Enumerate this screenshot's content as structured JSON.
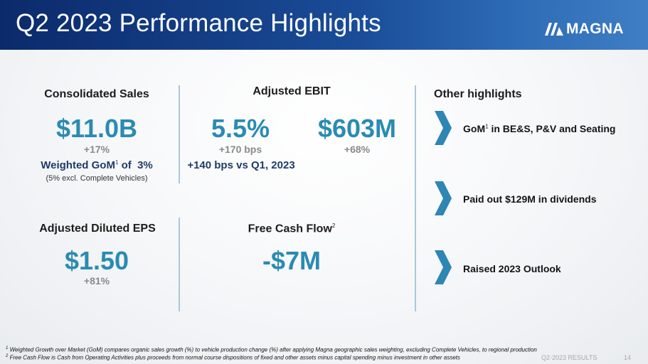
{
  "slide": {
    "title": "Q2 2023 Performance Highlights",
    "logo_text": "MAGNA",
    "footer_label": "Q2-2023 RESULTS",
    "page_number": "14"
  },
  "colors": {
    "header_blue": "#0b2a6b",
    "value_blue": "#2a8bb2",
    "dark_navy_text": "#1f3c67",
    "chevron_blue": "#2e86b4"
  },
  "consolidated_sales": {
    "heading": "Consolidated Sales",
    "value": "$11.0B",
    "change": "+17%",
    "gom_label": "Weighted GoM",
    "gom_sup": "1",
    "gom_value": "of  3%",
    "gom_note": "(5% excl. Complete Vehicles)"
  },
  "adjusted_ebit": {
    "heading": "Adjusted EBIT",
    "margin_value": "5.5%",
    "margin_change": "+170 bps",
    "amount_value": "$603M",
    "amount_change": "+68%",
    "vs_prior": "+140 bps vs Q1, 2023"
  },
  "adjusted_eps": {
    "heading": "Adjusted Diluted EPS",
    "value": "$1.50",
    "change": "+81%"
  },
  "free_cash_flow": {
    "heading": "Free Cash Flow",
    "heading_sup": "2",
    "value": "-$7M"
  },
  "other_highlights": {
    "heading": "Other highlights",
    "icon": "chevron-right-icon",
    "items": [
      {
        "label": "GoM",
        "sup": "1",
        "rest": " in BE&S, P&V and Seating"
      },
      {
        "label": "Paid out $129M in dividends"
      },
      {
        "label": "Raised 2023 Outlook"
      }
    ]
  },
  "footnotes": [
    {
      "num": "1",
      "text": " Weighted Growth over Market (GoM) compares organic sales growth (%) to vehicle production change (%) after applying Magna geographic sales weighting, excluding Complete Vehicles, to regional production"
    },
    {
      "num": "2",
      "text": " Free Cash Flow is Cash from Operating Activities plus proceeds from normal course dispositions of fixed and other assets minus capital spending minus investment in other assets"
    }
  ]
}
